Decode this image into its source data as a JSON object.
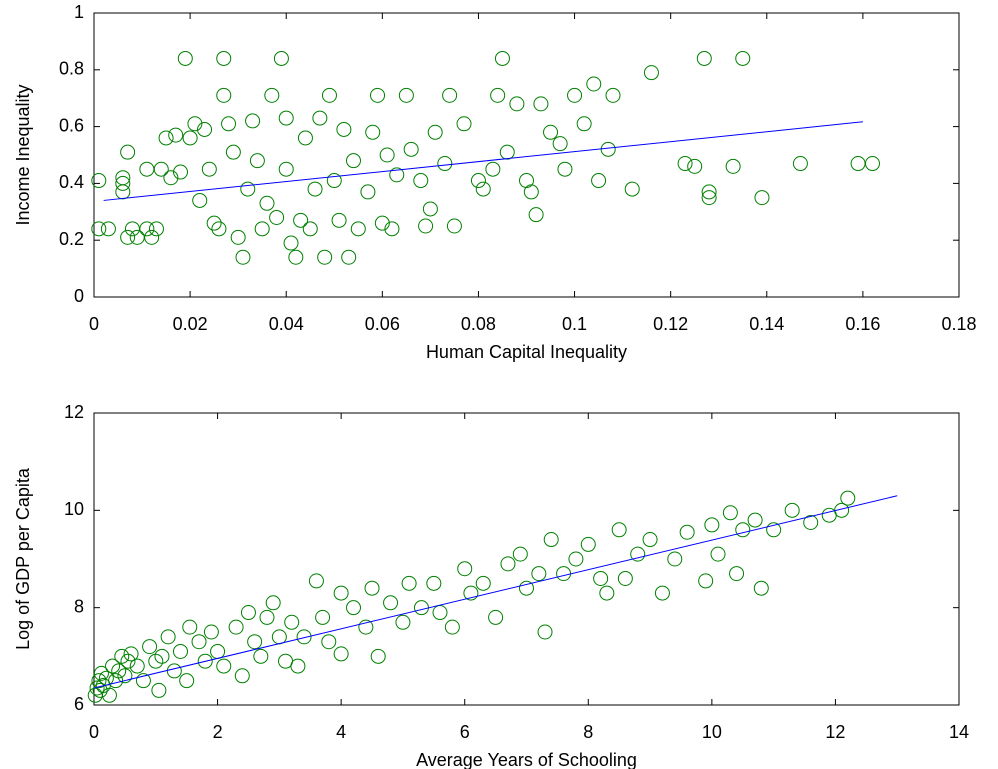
{
  "chart_data": [
    {
      "type": "scatter",
      "x_label": "Human Capital Inequality",
      "y_label": "Income Inequality",
      "xlim": [
        0,
        0.18
      ],
      "ylim": [
        0,
        1
      ],
      "xticks": [
        0,
        0.02,
        0.04,
        0.06,
        0.08,
        0.1,
        0.12,
        0.14,
        0.16,
        0.18
      ],
      "yticks": [
        0,
        0.2,
        0.4,
        0.6,
        0.8,
        1
      ],
      "grid": false,
      "points": {
        "color": "#008000",
        "x": [
          0.001,
          0.001,
          0.003,
          0.006,
          0.006,
          0.006,
          0.007,
          0.007,
          0.008,
          0.009,
          0.011,
          0.011,
          0.012,
          0.013,
          0.014,
          0.015,
          0.016,
          0.017,
          0.018,
          0.019,
          0.02,
          0.021,
          0.022,
          0.023,
          0.024,
          0.025,
          0.026,
          0.027,
          0.027,
          0.028,
          0.029,
          0.03,
          0.031,
          0.032,
          0.033,
          0.034,
          0.035,
          0.036,
          0.037,
          0.038,
          0.039,
          0.04,
          0.04,
          0.041,
          0.042,
          0.043,
          0.044,
          0.045,
          0.046,
          0.047,
          0.048,
          0.049,
          0.05,
          0.051,
          0.052,
          0.053,
          0.054,
          0.055,
          0.057,
          0.058,
          0.059,
          0.06,
          0.061,
          0.062,
          0.063,
          0.065,
          0.066,
          0.068,
          0.069,
          0.07,
          0.071,
          0.073,
          0.074,
          0.075,
          0.077,
          0.08,
          0.081,
          0.083,
          0.084,
          0.085,
          0.086,
          0.088,
          0.09,
          0.091,
          0.092,
          0.093,
          0.095,
          0.097,
          0.098,
          0.1,
          0.102,
          0.104,
          0.105,
          0.107,
          0.108,
          0.112,
          0.116,
          0.123,
          0.125,
          0.127,
          0.128,
          0.128,
          0.133,
          0.135,
          0.139,
          0.147,
          0.159,
          0.162
        ],
        "values": [
          0.41,
          0.24,
          0.24,
          0.42,
          0.4,
          0.37,
          0.51,
          0.21,
          0.24,
          0.21,
          0.24,
          0.45,
          0.21,
          0.24,
          0.45,
          0.56,
          0.42,
          0.57,
          0.44,
          0.84,
          0.56,
          0.61,
          0.34,
          0.59,
          0.45,
          0.26,
          0.24,
          0.84,
          0.71,
          0.61,
          0.51,
          0.21,
          0.14,
          0.38,
          0.62,
          0.48,
          0.24,
          0.33,
          0.71,
          0.28,
          0.84,
          0.63,
          0.45,
          0.19,
          0.14,
          0.27,
          0.56,
          0.24,
          0.38,
          0.63,
          0.14,
          0.71,
          0.41,
          0.27,
          0.59,
          0.14,
          0.48,
          0.24,
          0.37,
          0.58,
          0.71,
          0.26,
          0.5,
          0.24,
          0.43,
          0.71,
          0.52,
          0.41,
          0.25,
          0.31,
          0.58,
          0.47,
          0.71,
          0.25,
          0.61,
          0.41,
          0.38,
          0.45,
          0.71,
          0.84,
          0.51,
          0.68,
          0.41,
          0.37,
          0.29,
          0.68,
          0.58,
          0.54,
          0.45,
          0.71,
          0.61,
          0.75,
          0.41,
          0.52,
          0.71,
          0.38,
          0.79,
          0.47,
          0.46,
          0.84,
          0.35,
          0.37,
          0.46,
          0.84,
          0.35,
          0.47,
          0.47,
          0.47
        ]
      },
      "fit_line": {
        "color": "#0000ff",
        "x": [
          0.002,
          0.16
        ],
        "values": [
          0.34,
          0.617
        ]
      }
    },
    {
      "type": "scatter",
      "x_label": "Average Years of Schooling",
      "y_label": "Log of GDP per Capita",
      "xlim": [
        0,
        14
      ],
      "ylim": [
        6,
        12
      ],
      "xticks": [
        0,
        2,
        4,
        6,
        8,
        10,
        12,
        14
      ],
      "yticks": [
        6,
        8,
        10,
        12
      ],
      "grid": false,
      "points": {
        "color": "#008000",
        "x": [
          0.02,
          0.05,
          0.08,
          0.1,
          0.12,
          0.15,
          0.2,
          0.25,
          0.3,
          0.35,
          0.4,
          0.45,
          0.5,
          0.55,
          0.6,
          0.7,
          0.8,
          0.9,
          1.0,
          1.05,
          1.1,
          1.2,
          1.3,
          1.4,
          1.5,
          1.55,
          1.7,
          1.8,
          1.9,
          2.0,
          2.1,
          2.3,
          2.4,
          2.5,
          2.6,
          2.7,
          2.8,
          2.9,
          3.0,
          3.1,
          3.2,
          3.3,
          3.4,
          3.6,
          3.7,
          3.8,
          4.0,
          4.0,
          4.2,
          4.4,
          4.5,
          4.6,
          4.8,
          5.0,
          5.1,
          5.3,
          5.5,
          5.6,
          5.8,
          6.0,
          6.1,
          6.3,
          6.5,
          6.7,
          6.9,
          7.0,
          7.2,
          7.3,
          7.4,
          7.6,
          7.8,
          8.0,
          8.2,
          8.3,
          8.5,
          8.6,
          8.8,
          9.0,
          9.2,
          9.4,
          9.6,
          9.9,
          10.0,
          10.1,
          10.3,
          10.4,
          10.5,
          10.7,
          10.8,
          11.0,
          11.3,
          11.6,
          11.9,
          12.1,
          12.2
        ],
        "values": [
          6.2,
          6.35,
          6.5,
          6.3,
          6.65,
          6.4,
          6.55,
          6.2,
          6.8,
          6.5,
          6.7,
          7.0,
          6.6,
          6.9,
          7.05,
          6.8,
          6.5,
          7.2,
          6.9,
          6.3,
          7.0,
          7.4,
          6.7,
          7.1,
          6.5,
          7.6,
          7.3,
          6.9,
          7.5,
          7.1,
          6.8,
          7.6,
          6.6,
          7.9,
          7.3,
          7.0,
          7.8,
          8.1,
          7.4,
          6.9,
          7.7,
          6.8,
          7.4,
          8.55,
          7.8,
          7.3,
          7.05,
          8.3,
          8.0,
          7.6,
          8.4,
          7.0,
          8.1,
          7.7,
          8.5,
          8.0,
          8.5,
          7.9,
          7.6,
          8.8,
          8.3,
          8.5,
          7.8,
          8.9,
          9.1,
          8.4,
          8.7,
          7.5,
          9.4,
          8.7,
          9.0,
          9.3,
          8.6,
          8.3,
          9.6,
          8.6,
          9.1,
          9.4,
          8.3,
          9.0,
          9.55,
          8.55,
          9.7,
          9.1,
          9.95,
          8.7,
          9.6,
          9.8,
          8.4,
          9.6,
          10.0,
          9.75,
          9.9,
          10.0,
          10.25
        ]
      },
      "fit_line": {
        "color": "#0000ff",
        "x": [
          0,
          13
        ],
        "values": [
          6.35,
          10.3
        ]
      }
    }
  ]
}
